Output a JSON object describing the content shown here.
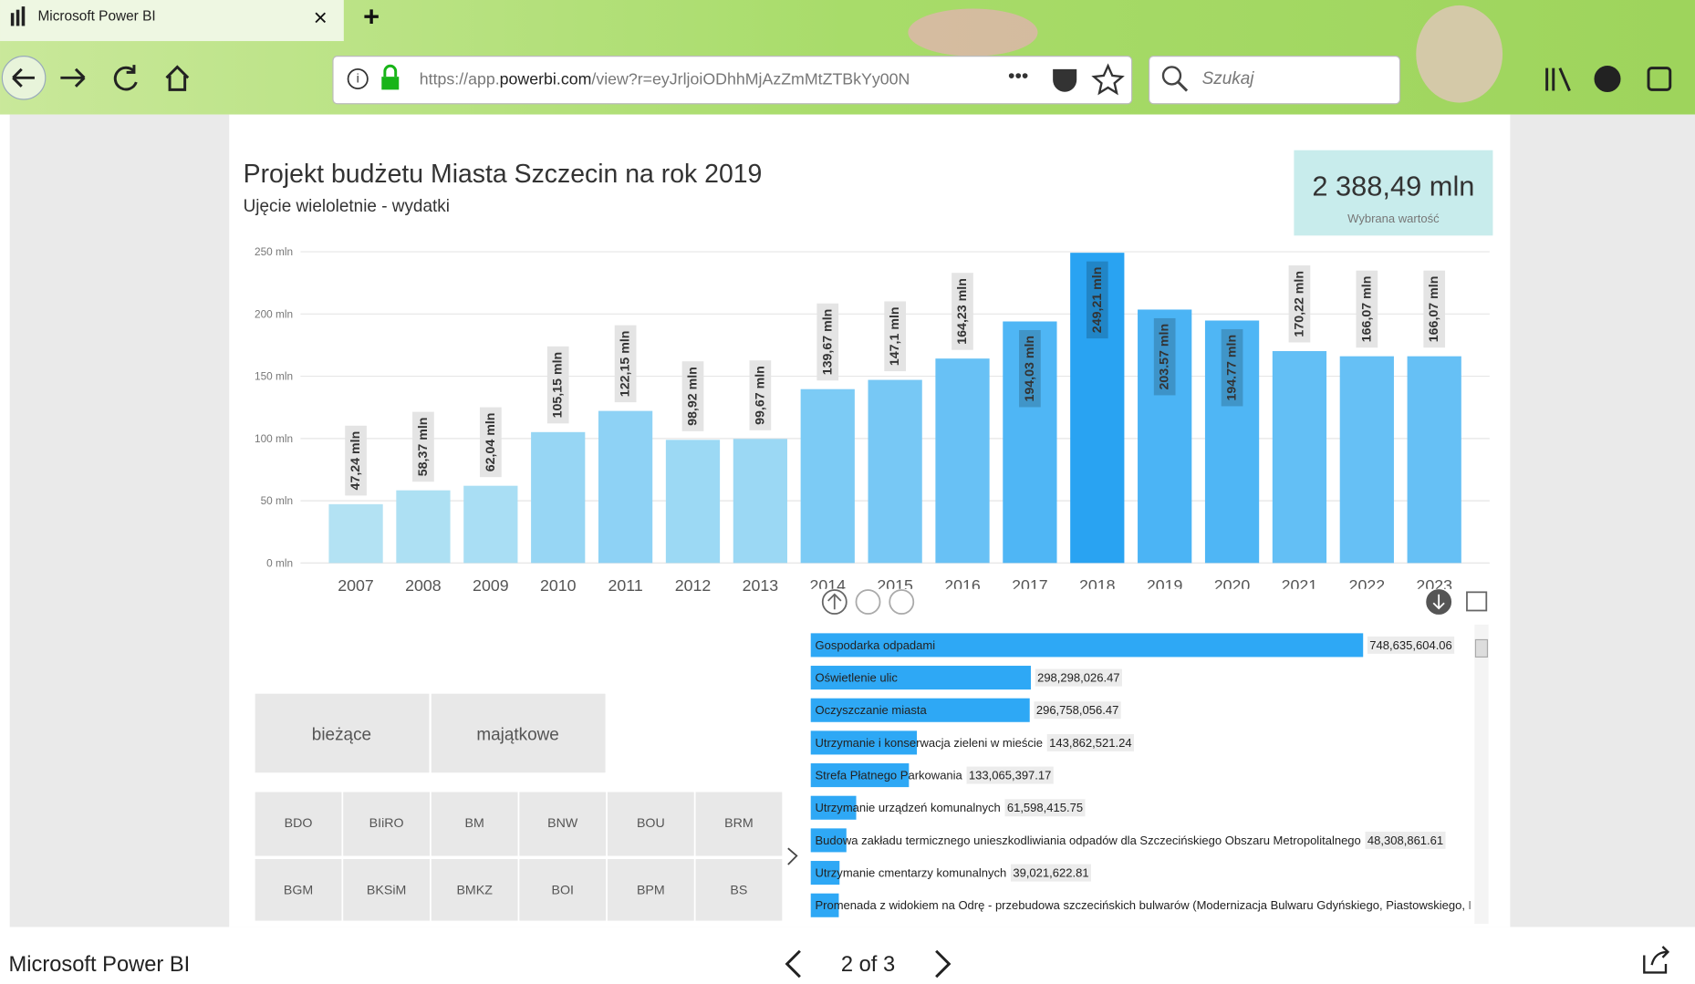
{
  "browser": {
    "tab_title": "Microsoft Power BI",
    "url_scheme": "https://app.",
    "url_domain": "powerbi.com",
    "url_path": "/view?r=eyJrljoiODhhMjAzZmMtZTBkYy00N",
    "search_placeholder": "Szukaj"
  },
  "report": {
    "title": "Projekt budżetu Miasta Szczecin na rok 2019",
    "subtitle": "Ujęcie wieloletnie - wydatki",
    "kpi": {
      "value": "2 388,49 mln",
      "caption": "Wybrana wartość"
    }
  },
  "column_chart": {
    "type": "bar",
    "categories": [
      "2007",
      "2008",
      "2009",
      "2010",
      "2011",
      "2012",
      "2013",
      "2014",
      "2015",
      "2016",
      "2017",
      "2018",
      "2019",
      "2020",
      "2021",
      "2022",
      "2023"
    ],
    "values": [
      47.24,
      58.37,
      62.04,
      105.15,
      122.15,
      98.92,
      99.67,
      139.67,
      147.1,
      164.23,
      194.03,
      249.21,
      203.57,
      194.77,
      170.22,
      166.07,
      166.07
    ],
    "value_labels": [
      "47,24 mln",
      "58,37 mln",
      "62,04 mln",
      "105,15 mln",
      "122,15 mln",
      "98,92 mln",
      "99,67 mln",
      "139,67 mln",
      "147,1 mln",
      "164,23 mln",
      "194,03 mln",
      "249,21 mln",
      "203.57 mln",
      "194.77 mln",
      "170,22 mln",
      "166,07 mln",
      "166,07 mln"
    ],
    "colors": [
      "#b3e2f3",
      "#ade0f3",
      "#a9def4",
      "#97d6f4",
      "#8ed2f5",
      "#9cd9f4",
      "#9bd8f4",
      "#7ccbf5",
      "#77c8f5",
      "#68c1f5",
      "#4fb6f5",
      "#29a3f2",
      "#4bb4f5",
      "#4fb6f5",
      "#63bff5",
      "#66c0f5",
      "#66c0f5"
    ],
    "ylim": [
      0,
      250
    ],
    "yticks": [
      {
        "value": 0,
        "label": "0 mln"
      },
      {
        "value": 50,
        "label": "50 mln"
      },
      {
        "value": 100,
        "label": "100 mln"
      },
      {
        "value": 150,
        "label": "150 mln"
      },
      {
        "value": 200,
        "label": "200 mln"
      },
      {
        "value": 250,
        "label": "250 mln"
      }
    ],
    "grid": true
  },
  "filters": {
    "type_buttons": [
      "bieżące",
      "majątkowe"
    ],
    "unit_buttons": [
      "BDO",
      "BIiRO",
      "BM",
      "BNW",
      "BOU",
      "BRM",
      "BGM",
      "BKSiM",
      "BMKZ",
      "BOI",
      "BPM",
      "BS"
    ]
  },
  "bar_list": {
    "type": "bar",
    "orientation": "horizontal",
    "color": "#2ea8f5",
    "categories": [
      "Gospodarka odpadami",
      "Oświetlenie ulic",
      "Oczyszczanie miasta",
      "Utrzymanie i konserwacja zieleni w mieście",
      "Strefa Płatnego Parkowania",
      "Utrzymanie urządzeń komunalnych",
      "Budowa zakładu termicznego unieszkodliwiania odpadów dla Szczecińskiego Obszaru Metropolitalnego",
      "Utrzymanie cmentarzy komunalnych",
      "Promenada z widokiem na Odrę - przebudowa szczecińskich bulwarów (Modernizacja Bulwaru Gdyńskiego, Piastowskiego, B"
    ],
    "values": [
      748635604.06,
      298298026.47,
      296758056.47,
      143862521.24,
      133065397.17,
      61598415.75,
      48308861.61,
      39021622.81,
      38000000
    ],
    "value_labels": [
      "748,635,604.06",
      "298,298,026.47",
      "296,758,056.47",
      "143,862,521.24",
      "133,065,397.17",
      "61,598,415.75",
      "48,308,861.61",
      "39,021,622.81",
      null
    ]
  },
  "footer": {
    "app_name": "Microsoft Power BI",
    "page_indicator": "2 of 3"
  }
}
